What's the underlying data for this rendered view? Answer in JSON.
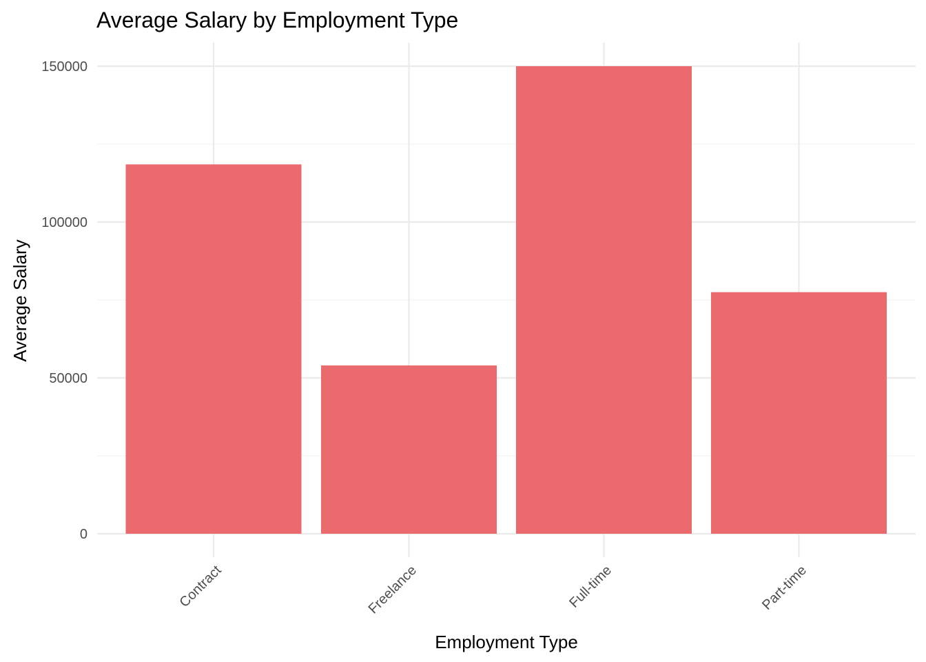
{
  "chart_data": {
    "type": "bar",
    "title": "Average Salary by Employment Type",
    "xlabel": "Employment Type",
    "ylabel": "Average Salary",
    "categories": [
      "Contract",
      "Freelance",
      "Full-time",
      "Part-time"
    ],
    "values": [
      118500,
      54000,
      150000,
      77500
    ],
    "ylim": [
      0,
      157000
    ],
    "yticks": [
      0,
      50000,
      100000,
      150000
    ],
    "yticks_labels": [
      "0",
      "50000",
      "100000",
      "150000"
    ],
    "minor_gridlines": [
      25000,
      75000,
      125000
    ],
    "grid": true,
    "legend": "none",
    "colors": {
      "bar": "#EA6A6E",
      "grid_major": "#EBEBEB",
      "grid_minor": "#F3F3F3",
      "tick_text": "#4D4D4D",
      "text": "#000000"
    }
  }
}
